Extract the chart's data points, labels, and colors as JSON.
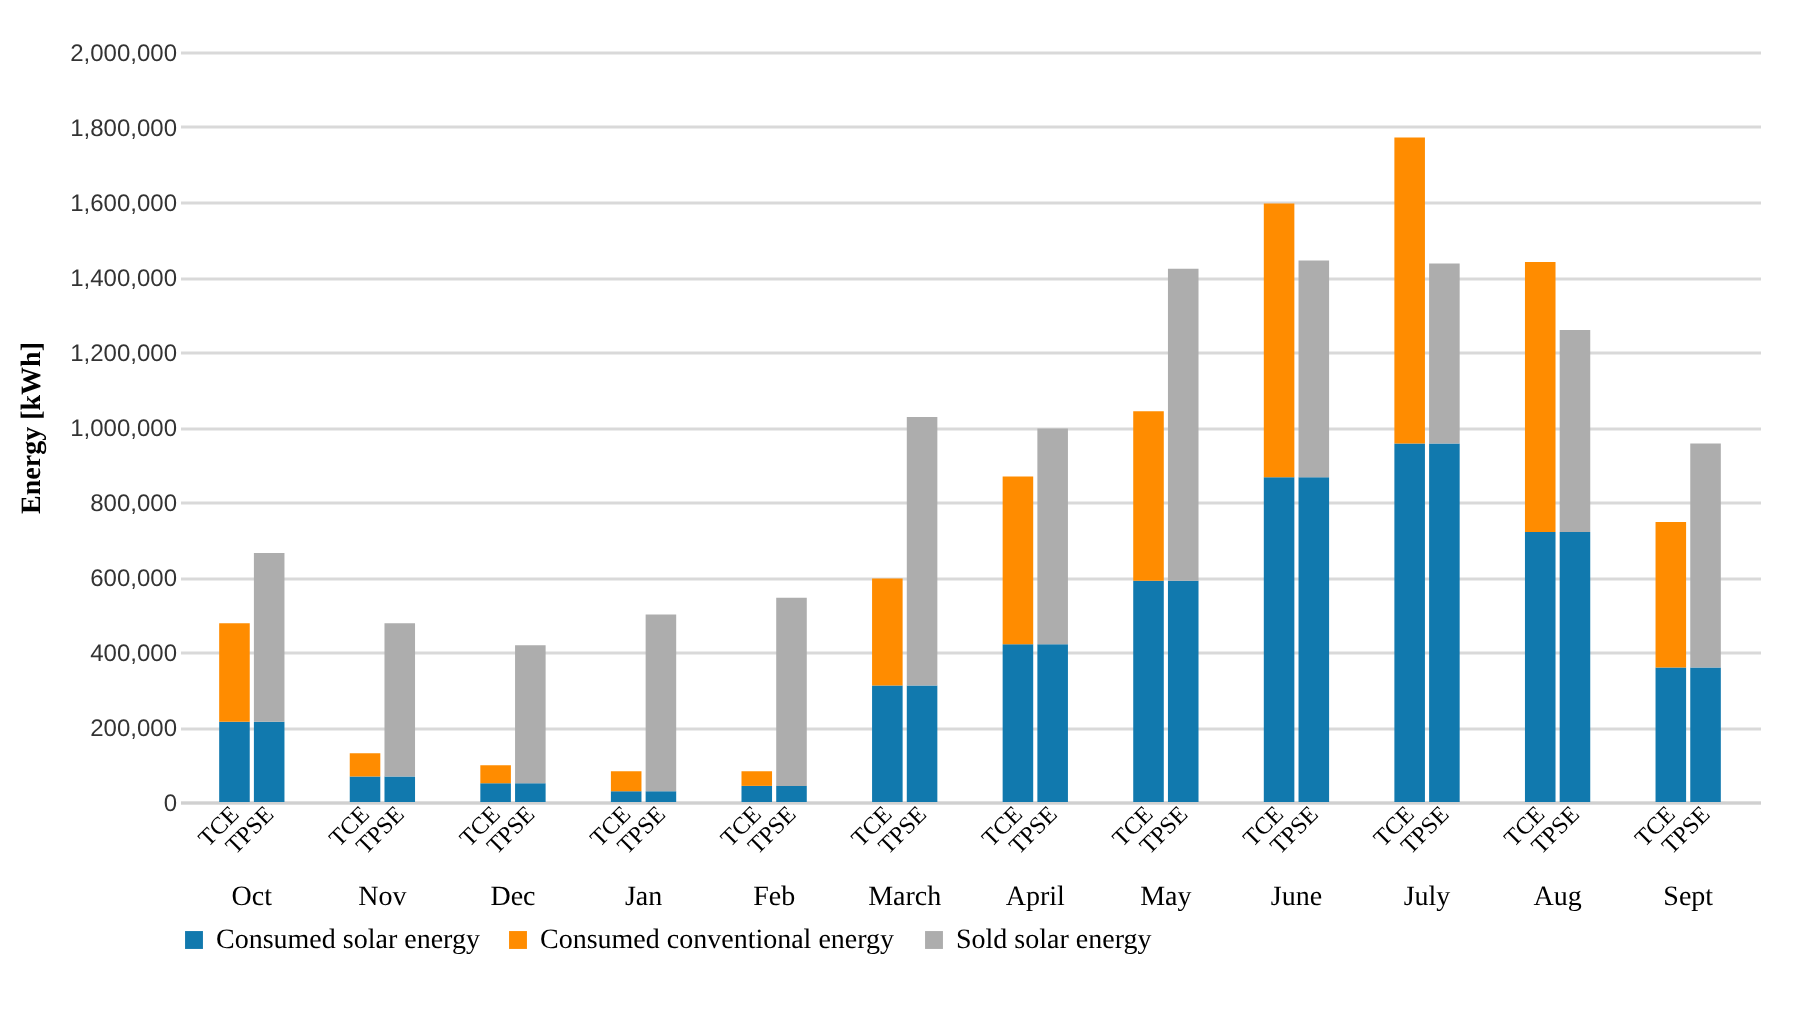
{
  "chart_data": {
    "type": "bar",
    "stacked": true,
    "ylabel": "Energy [kWh]",
    "categories": [
      "TCE",
      "TPSE",
      "TCE",
      "TPSE",
      "TCE",
      "TPSE",
      "TCE",
      "TPSE",
      "TCE",
      "TPSE",
      "TCE",
      "TPSE",
      "TCE",
      "TPSE",
      "TCE",
      "TPSE",
      "TCE",
      "TPSE",
      "TCE",
      "TPSE",
      "TCE",
      "TPSE",
      "TCE",
      "TPSE"
    ],
    "annotations": [
      "Oct",
      "Nov",
      "Dec",
      "Jan",
      "Feb",
      "March",
      "April",
      "May",
      "June",
      "July",
      "Aug",
      "Sept"
    ],
    "series": [
      {
        "name": "Consumed solar energy",
        "color": "#1179ae",
        "values": [
          214000,
          214000,
          68000,
          68000,
          50000,
          50000,
          29000,
          29000,
          43000,
          43000,
          311000,
          311000,
          421000,
          421000,
          590000,
          590000,
          866000,
          866000,
          956000,
          956000,
          720000,
          720000,
          359000,
          359000
        ]
      },
      {
        "name": "Consumed conventional energy",
        "color": "#ff8c00",
        "values": [
          263000,
          null,
          62000,
          null,
          48000,
          null,
          53000,
          null,
          39000,
          null,
          285000,
          null,
          447000,
          null,
          452000,
          null,
          730000,
          null,
          816000,
          null,
          720000,
          null,
          388000,
          null
        ]
      },
      {
        "name": "Sold solar energy",
        "color": "#adadad",
        "values": [
          null,
          450000,
          null,
          409000,
          null,
          368000,
          null,
          471000,
          null,
          502000,
          null,
          716000,
          null,
          575000,
          null,
          832000,
          null,
          578000,
          null,
          480000,
          null,
          539000,
          null,
          597000
        ]
      }
    ],
    "ylim": [
      0,
      2000000
    ],
    "yticks": [
      0,
      {
        "value": 200000,
        "label": "200,000"
      },
      {
        "value": 400000,
        "label": "400,000"
      },
      {
        "value": 600000,
        "label": "600,000"
      },
      {
        "value": 800000,
        "label": "800,000"
      },
      {
        "value": 1000000,
        "label": "1,000,000"
      },
      {
        "value": 1200000,
        "label": "1,200,000"
      },
      {
        "value": 1400000,
        "label": "1,400,000"
      },
      {
        "value": 1600000,
        "label": "1,600,000"
      },
      {
        "value": 1800000,
        "label": "1,800,000"
      },
      {
        "value": 2000000,
        "label": "2,000,000"
      }
    ],
    "grid": "y",
    "legend": "bottom"
  }
}
